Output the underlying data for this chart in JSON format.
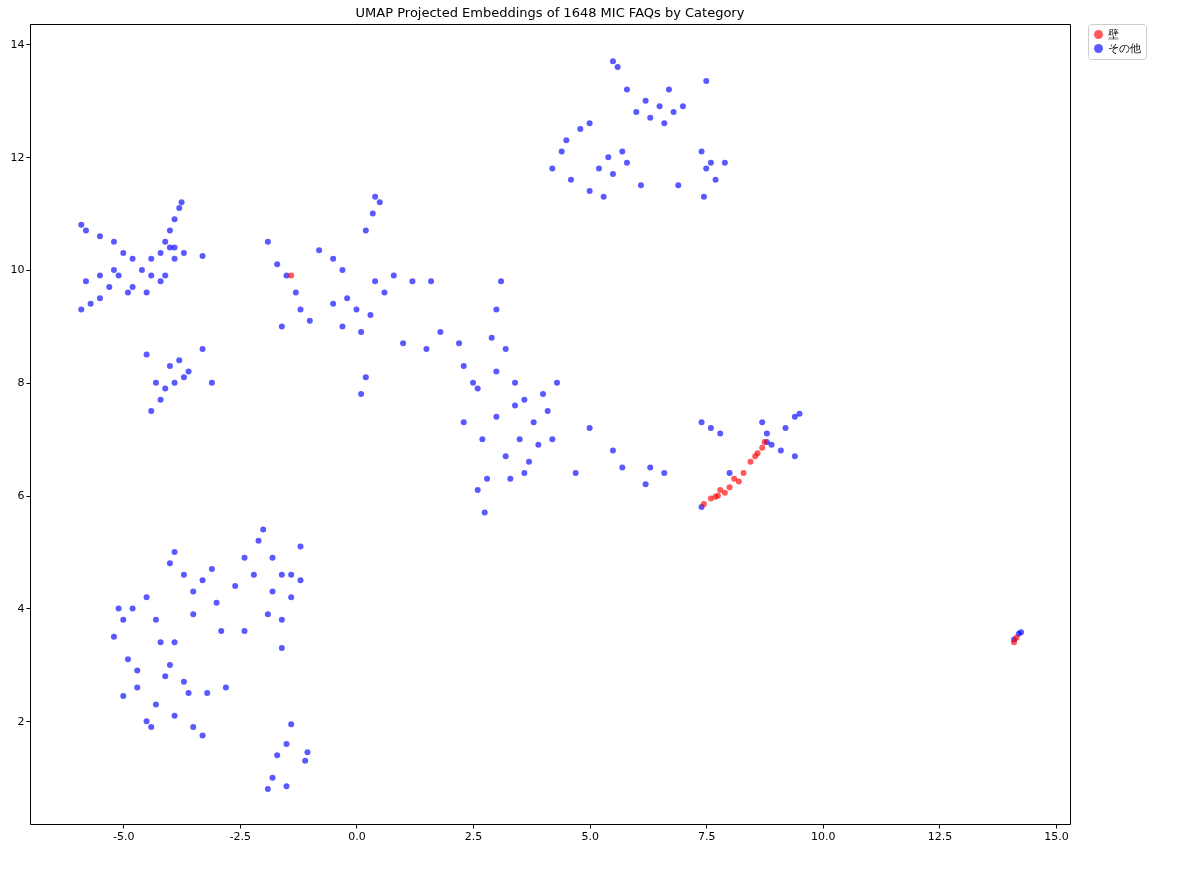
{
  "chart_data": {
    "type": "scatter",
    "title": "UMAP Projected Embeddings of 1648 MIC FAQs by Category",
    "xlim": [
      -7.0,
      15.3
    ],
    "ylim": [
      0.18,
      14.36
    ],
    "xticks": [
      {
        "value": -5,
        "label": "-5.0"
      },
      -2.5,
      {
        "value": 0,
        "label": "0.0"
      },
      2.5,
      {
        "value": 5,
        "label": "5.0"
      },
      7.5,
      {
        "value": 10,
        "label": "10.0"
      },
      12.5,
      {
        "value": 15,
        "label": "15.0"
      }
    ],
    "yticks": [
      2,
      4,
      6,
      8,
      10,
      12,
      14
    ],
    "grid": false,
    "legend": "right",
    "marker": "circle",
    "series": [
      {
        "name": "壁",
        "color": "#ff0000",
        "x": [
          7.45,
          7.6,
          7.75,
          7.8,
          7.9,
          8.0,
          8.1,
          8.2,
          8.3,
          8.45,
          8.55,
          8.6,
          8.7,
          8.75,
          7.7,
          -1.4,
          14.1,
          14.15
        ],
        "values": [
          5.85,
          5.95,
          6.0,
          6.1,
          6.05,
          6.15,
          6.3,
          6.25,
          6.4,
          6.6,
          6.7,
          6.75,
          6.85,
          6.95,
          5.98,
          9.9,
          3.4,
          3.48
        ]
      },
      {
        "name": "その他",
        "color": "#0000ff",
        "x": [
          -5.9,
          -5.8,
          -5.5,
          -5.2,
          -5.0,
          -4.8,
          -4.6,
          -4.4,
          -4.2,
          -4.1,
          -4.0,
          -3.9,
          -3.8,
          -3.75,
          -4.0,
          -4.4,
          -4.2,
          -3.9,
          -3.7,
          -3.3,
          -5.9,
          -5.7,
          -5.5,
          -5.3,
          -5.1,
          -4.9,
          -4.8,
          -5.2,
          -5.5,
          -5.8,
          -4.5,
          -4.1,
          -3.9,
          -4.5,
          -4.3,
          -4.4,
          -4.2,
          -4.0,
          -3.8,
          -3.9,
          -3.6,
          -3.3,
          -3.1,
          -4.1,
          -3.7,
          -1.9,
          -1.7,
          -1.5,
          -1.3,
          -1.2,
          -1.0,
          -0.8,
          -0.5,
          -0.3,
          -0.2,
          0.0,
          0.1,
          -0.3,
          0.4,
          0.6,
          0.8,
          1.2,
          1.6,
          0.4,
          0.35,
          0.5,
          0.2,
          0.1,
          0.2,
          -1.6,
          -0.5,
          0.3,
          1.0,
          1.5,
          1.8,
          2.2,
          2.3,
          2.5,
          2.6,
          2.9,
          3.0,
          3.2,
          3.0,
          3.4,
          3.6,
          3.8,
          3.5,
          3.2,
          3.6,
          3.9,
          4.1,
          4.3,
          4.2,
          3.7,
          3.3,
          2.8,
          2.75,
          2.6,
          2.3,
          3.1,
          3.4,
          4.0,
          2.7,
          3.0,
          4.7,
          5.0,
          5.5,
          5.7,
          6.2,
          6.3,
          6.6,
          7.4,
          7.6,
          7.8,
          7.4,
          8.0,
          8.7,
          8.8,
          8.9,
          9.1,
          9.4,
          9.5,
          9.4,
          9.2,
          8.8,
          4.2,
          4.4,
          4.5,
          4.8,
          5.0,
          4.6,
          5.0,
          5.3,
          5.5,
          5.4,
          5.2,
          5.5,
          5.6,
          5.8,
          6.0,
          6.2,
          6.3,
          6.5,
          6.7,
          6.6,
          6.8,
          7.0,
          6.9,
          7.4,
          7.5,
          7.7,
          7.6,
          7.9,
          7.45,
          7.5,
          5.8,
          6.1,
          5.7,
          -5.1,
          -5.0,
          -5.2,
          -4.9,
          -4.7,
          -5.0,
          -4.7,
          -4.5,
          -4.4,
          -4.3,
          -4.1,
          -4.0,
          -4.2,
          -3.9,
          -3.7,
          -3.6,
          -3.9,
          -3.5,
          -3.3,
          -3.2,
          -4.0,
          -3.9,
          -3.7,
          -3.5,
          -3.3,
          -3.1,
          -3.0,
          -4.5,
          -4.8,
          -4.3,
          -2.9,
          -2.8,
          -2.4,
          -2.2,
          -2.4,
          -2.1,
          -2.0,
          -1.8,
          -1.6,
          -1.4,
          -1.2,
          -1.2,
          -1.4,
          -1.6,
          -1.9,
          -1.8,
          -1.6,
          -1.9,
          -1.8,
          -1.7,
          -1.5,
          -1.5,
          -1.4,
          -1.05,
          -1.1,
          -2.6,
          -3.5,
          14.1,
          14.2,
          14.25
        ],
        "values": [
          10.8,
          10.7,
          10.6,
          10.5,
          10.3,
          10.2,
          10.0,
          10.2,
          10.3,
          10.5,
          10.7,
          10.9,
          11.1,
          11.2,
          10.4,
          9.9,
          9.8,
          10.4,
          10.3,
          10.25,
          9.3,
          9.4,
          9.5,
          9.7,
          9.9,
          9.6,
          9.7,
          10.0,
          9.9,
          9.8,
          9.6,
          9.9,
          10.2,
          8.5,
          8.0,
          7.5,
          7.7,
          8.3,
          8.4,
          8.0,
          8.2,
          8.6,
          8.0,
          7.9,
          8.1,
          10.5,
          10.1,
          9.9,
          9.6,
          9.3,
          9.1,
          10.35,
          10.2,
          10.0,
          9.5,
          9.3,
          8.9,
          9.0,
          9.8,
          9.6,
          9.9,
          9.8,
          9.8,
          11.3,
          11.0,
          11.2,
          10.7,
          7.8,
          8.1,
          9.0,
          9.4,
          9.2,
          8.7,
          8.6,
          8.9,
          8.7,
          8.3,
          8.0,
          7.9,
          8.8,
          9.3,
          8.6,
          8.2,
          8.0,
          7.7,
          7.3,
          7.0,
          6.7,
          6.4,
          6.9,
          7.5,
          8.0,
          7.0,
          6.6,
          6.3,
          6.3,
          5.7,
          6.1,
          7.3,
          9.8,
          7.6,
          7.8,
          7.0,
          7.4,
          6.4,
          7.2,
          6.8,
          6.5,
          6.2,
          6.5,
          6.4,
          7.3,
          7.2,
          7.1,
          5.8,
          6.4,
          7.3,
          7.1,
          6.9,
          6.8,
          7.4,
          7.45,
          6.7,
          7.2,
          6.95,
          11.8,
          12.1,
          12.3,
          12.5,
          12.6,
          11.6,
          11.4,
          11.3,
          11.7,
          12.0,
          11.8,
          13.7,
          13.6,
          13.2,
          12.8,
          13.0,
          12.7,
          12.9,
          13.2,
          12.6,
          12.8,
          12.9,
          11.5,
          12.1,
          11.8,
          11.6,
          11.9,
          11.9,
          11.3,
          13.35,
          11.9,
          11.5,
          12.1,
          4.0,
          3.8,
          3.5,
          3.1,
          2.9,
          2.45,
          2.6,
          2.0,
          1.9,
          2.3,
          2.8,
          3.0,
          3.4,
          3.4,
          2.7,
          2.5,
          2.1,
          1.9,
          1.75,
          2.5,
          4.8,
          5.0,
          4.6,
          4.3,
          4.5,
          4.7,
          4.1,
          4.2,
          4.0,
          3.8,
          3.6,
          2.6,
          3.6,
          4.6,
          4.9,
          5.2,
          5.4,
          4.9,
          4.6,
          4.6,
          4.5,
          5.1,
          4.2,
          3.8,
          3.9,
          4.3,
          3.3,
          0.8,
          1.0,
          1.4,
          0.85,
          1.6,
          1.95,
          1.45,
          1.3,
          4.4,
          3.9,
          3.45,
          3.55,
          3.58
        ]
      }
    ]
  }
}
